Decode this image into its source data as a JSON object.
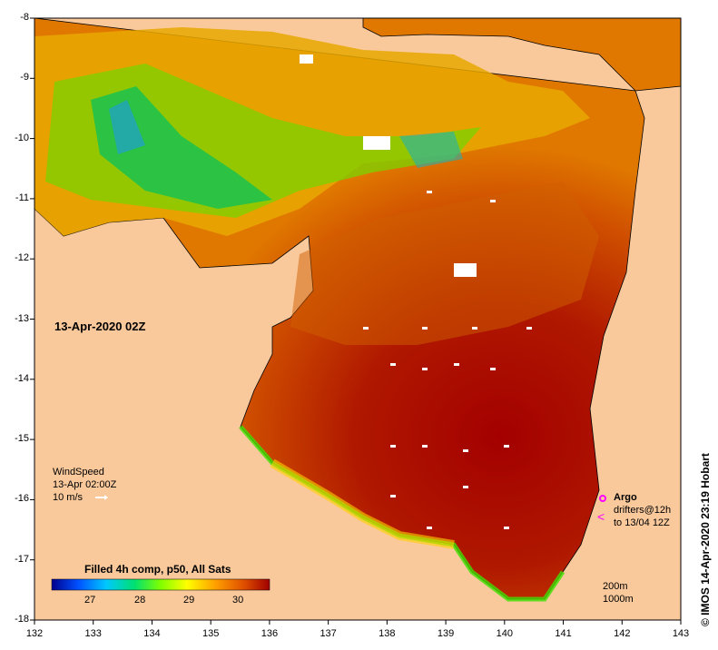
{
  "map": {
    "date_label": "13-Apr-2020 02Z",
    "credit": "© IMOS 14-Apr-2020 23:19 Hobart",
    "x_axis": {
      "ticks": [
        "132",
        "133",
        "134",
        "135",
        "136",
        "137",
        "138",
        "139",
        "140",
        "141",
        "142",
        "143"
      ]
    },
    "y_axis": {
      "ticks": [
        "-8",
        "-9",
        "-10",
        "-11",
        "-12",
        "-13",
        "-14",
        "-15",
        "-16",
        "-17",
        "-18"
      ]
    },
    "wind": {
      "title": "WindSpeed",
      "time": "13-Apr 02:00Z",
      "scale": "10 m/s"
    },
    "colorbar": {
      "title": "Filled 4h comp, p50, All Sats",
      "ticks": [
        "27",
        "28",
        "29",
        "30"
      ],
      "colors": [
        "#00008c",
        "#0050ff",
        "#00c8ff",
        "#00e070",
        "#80ff00",
        "#ffff00",
        "#ffa000",
        "#e05000",
        "#a00000"
      ]
    },
    "argo": {
      "title": "Argo",
      "drifters": "drifters@12h",
      "until": "to 13/04 12Z"
    },
    "contours": {
      "c200": "200m",
      "c1000": "1000m"
    },
    "colors": {
      "land": "#f9c99c",
      "sea_warm": "#a30000",
      "sea_mid": "#e07800",
      "sea_cool": "#00b000",
      "argo": "#ff00ff"
    }
  }
}
